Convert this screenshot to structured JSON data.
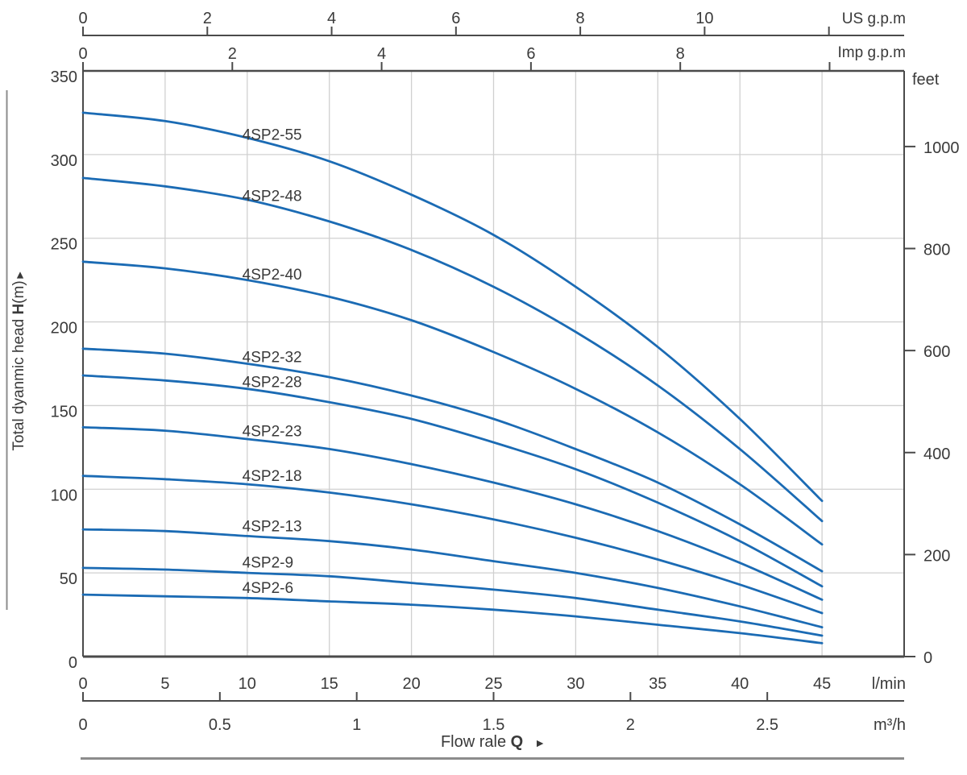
{
  "chart_data": {
    "type": "line",
    "x_axis": {
      "label_prefix": "Flow rale ",
      "label_bold": "Q",
      "arrow": "►",
      "range_lmin": [
        0,
        50
      ],
      "grid_step_lmin": 5,
      "unit_scales": {
        "us_gpm_to_lmin": 3.785,
        "imp_gpm_to_lmin": 4.546,
        "m3h_to_lmin": 16.6667
      },
      "axes": {
        "us_gpm": {
          "unit": "US g.p.m",
          "ticks": [
            0,
            2,
            4,
            6,
            8,
            10
          ],
          "end_tick": 12
        },
        "imp_gpm": {
          "unit": "Imp g.p.m",
          "ticks": [
            0,
            2,
            4,
            6,
            8
          ],
          "end_tick": 10
        },
        "lmin": {
          "unit": "l/min",
          "ticks": [
            0,
            5,
            10,
            15,
            20,
            25,
            30,
            35,
            40,
            45
          ]
        },
        "m3h": {
          "unit": "m³/h",
          "ticks": [
            0,
            0.5,
            1,
            1.5,
            2,
            2.5
          ]
        }
      }
    },
    "y_axis": {
      "label_prefix": "Total dyanmic head ",
      "label_bold": "H",
      "label_suffix": "(m)",
      "arrow": "►",
      "range_m": [
        0,
        350
      ],
      "m_ticks": [
        0,
        50,
        100,
        150,
        200,
        250,
        300,
        350
      ],
      "feet": {
        "unit": "feet",
        "ticks": [
          0,
          200,
          400,
          600,
          800,
          1000
        ],
        "ft_to_m": 0.3048
      }
    },
    "q_samples_lmin": [
      0,
      5,
      10,
      15,
      20,
      25,
      30,
      35,
      40,
      45
    ],
    "series": [
      {
        "name": "4SP2-55",
        "heads_m": [
          325,
          320,
          310,
          296,
          276,
          252,
          221,
          185,
          142,
          93
        ]
      },
      {
        "name": "4SP2-48",
        "heads_m": [
          286,
          281,
          273,
          260,
          243,
          221,
          194,
          162,
          124,
          81
        ]
      },
      {
        "name": "4SP2-40",
        "heads_m": [
          236,
          232,
          225,
          215,
          201,
          182,
          160,
          134,
          103,
          67
        ]
      },
      {
        "name": "4SP2-32",
        "heads_m": [
          184,
          181,
          175,
          167,
          156,
          142,
          124,
          104,
          79,
          51
        ]
      },
      {
        "name": "4SP2-28",
        "heads_m": [
          168,
          165,
          160,
          152,
          142,
          128,
          112,
          92,
          69,
          42
        ]
      },
      {
        "name": "4SP2-23",
        "heads_m": [
          137,
          135,
          130,
          124,
          115,
          104,
          91,
          75,
          56,
          34
        ]
      },
      {
        "name": "4SP2-18",
        "heads_m": [
          108,
          106,
          103,
          98,
          91,
          82,
          71,
          58,
          43,
          26
        ]
      },
      {
        "name": "4SP2-13",
        "heads_m": [
          76,
          75,
          72,
          69,
          64,
          57,
          50,
          41,
          30,
          17.5
        ]
      },
      {
        "name": "4SP2-9",
        "heads_m": [
          53,
          52,
          50,
          48,
          44,
          40,
          35,
          28,
          21,
          12.5
        ]
      },
      {
        "name": "4SP2-6",
        "heads_m": [
          37,
          36,
          35,
          33,
          31,
          28,
          24,
          19,
          14,
          8
        ]
      }
    ],
    "colors": {
      "curve": "#1b6bb4",
      "grid": "#d0d0d0",
      "axis": "#4a4a4a",
      "text": "#3a3a3a",
      "rule": "#8c8c8c"
    }
  }
}
